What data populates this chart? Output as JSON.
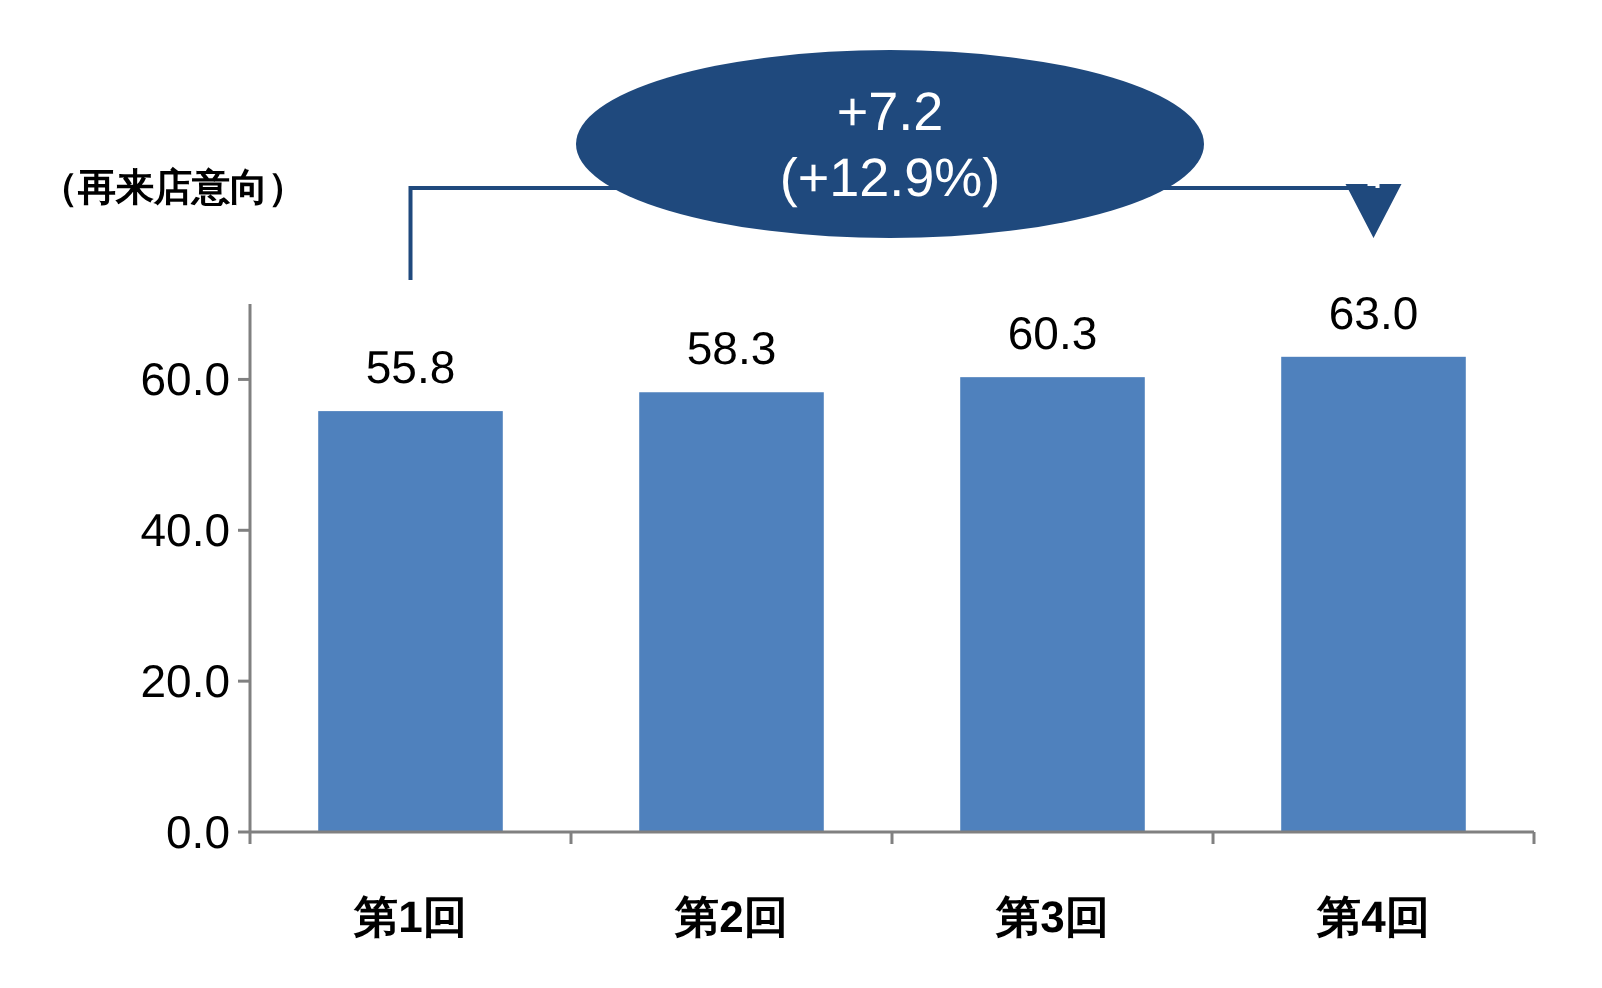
{
  "chart_data": {
    "type": "bar",
    "ylabel": "（再来店意向）",
    "categories": [
      "第1回",
      "第2回",
      "第3回",
      "第4回"
    ],
    "values": [
      55.8,
      58.3,
      60.3,
      63.0
    ],
    "value_labels": [
      "55.8",
      "58.3",
      "60.3",
      "63.0"
    ],
    "color": "#4f81bd",
    "ylim": [
      0,
      70
    ],
    "yticks": [
      {
        "value": 0,
        "label": "0.0"
      },
      {
        "value": 20,
        "label": "20.0"
      },
      {
        "value": 40,
        "label": "40.0"
      },
      {
        "value": 60,
        "label": "60.0"
      }
    ],
    "annotations": [
      "+7.2\n(+12.9%)"
    ]
  }
}
